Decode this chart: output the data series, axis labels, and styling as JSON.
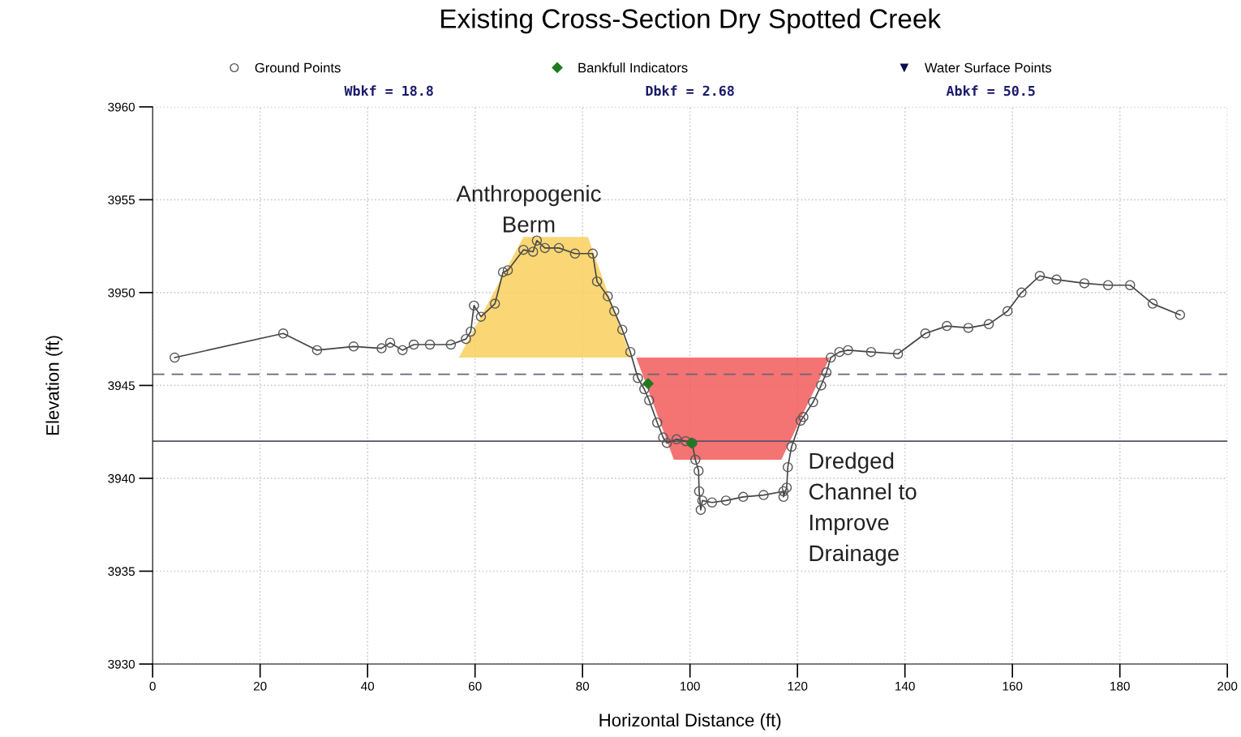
{
  "chart_data": {
    "type": "line",
    "title": "Existing Cross-Section Dry Spotted Creek",
    "xlabel": "Horizontal Distance (ft)",
    "ylabel": "Elevation (ft)",
    "xlim": [
      0,
      200
    ],
    "xticks": [
      0,
      20,
      40,
      60,
      80,
      100,
      120,
      140,
      160,
      180,
      200
    ],
    "ylim": [
      3930,
      3960
    ],
    "yticks": [
      3930,
      3935,
      3940,
      3945,
      3950,
      3955,
      3960
    ],
    "grid": true,
    "legend": "top",
    "series": [
      {
        "type": "area",
        "color": "#f9cf5c",
        "x": [
          57,
          69,
          81,
          89,
          57
        ],
        "values": [
          3946.5,
          3953,
          3953,
          3946.5,
          3946.5
        ]
      },
      {
        "type": "area",
        "color": "#f25a5a",
        "x": [
          90,
          126,
          117,
          97,
          90
        ],
        "values": [
          3946.5,
          3946.5,
          3941,
          3941,
          3946.5
        ]
      },
      {
        "name": "Ground Points",
        "color": "#444444",
        "marker": "circle",
        "line_style": "solid",
        "x": [
          4.1,
          24.3,
          30.6,
          37.4,
          42.6,
          44.2,
          46.5,
          48.6,
          51.6,
          55.5,
          58.3,
          59.2,
          59.8,
          61.1,
          63.7,
          65.2,
          66.1,
          69.0,
          70.8,
          71.5,
          73.0,
          75.6,
          78.6,
          81.9,
          82.7,
          84.7,
          85.9,
          87.4,
          88.9,
          90.3,
          91.5,
          92.4,
          93.9,
          95.0,
          95.7,
          97.5,
          99.2,
          100.4,
          101.0,
          101.6,
          101.7,
          102.0,
          102.3,
          104.1,
          106.7,
          109.9,
          113.7,
          117.4,
          117.4,
          118.0,
          118.2,
          118.9,
          120.6,
          121.1,
          122.9,
          124.4,
          125.4,
          126.2,
          127.8,
          129.4,
          133.7,
          138.7,
          143.8,
          147.8,
          151.8,
          155.6,
          159.1,
          161.7,
          165.1,
          168.2,
          173.4,
          177.8,
          181.9,
          186.1,
          191.2
        ],
        "values": [
          3946.5,
          3947.8,
          3946.9,
          3947.1,
          3947.0,
          3947.3,
          3946.9,
          3947.2,
          3947.2,
          3947.2,
          3947.5,
          3947.9,
          3949.3,
          3948.7,
          3949.4,
          3951.1,
          3951.2,
          3952.3,
          3952.2,
          3952.8,
          3952.4,
          3952.4,
          3952.1,
          3952.1,
          3950.6,
          3949.8,
          3949.0,
          3948.0,
          3946.8,
          3945.4,
          3944.8,
          3944.2,
          3943.0,
          3942.2,
          3941.9,
          3942.1,
          3942.0,
          3941.9,
          3941.0,
          3940.4,
          3939.3,
          3938.3,
          3938.8,
          3938.7,
          3938.8,
          3939.0,
          3939.1,
          3939.3,
          3939.0,
          3939.5,
          3940.6,
          3941.7,
          3943.1,
          3943.3,
          3944.1,
          3945.0,
          3945.7,
          3946.5,
          3946.8,
          3946.9,
          3946.8,
          3946.7,
          3947.8,
          3948.2,
          3948.1,
          3948.3,
          3949.0,
          3950.0,
          3950.9,
          3950.7,
          3950.5,
          3950.4,
          3950.4,
          3949.4,
          3948.8
        ]
      },
      {
        "type": "scatter",
        "name": "Bankfull Indicators",
        "color": "#1e7a1e",
        "marker": "diamond",
        "x": [
          92.2,
          100.3
        ],
        "values": [
          3945.1,
          3941.9
        ]
      },
      {
        "type": "scatter",
        "name": "Water Surface Points",
        "color": "#0a0a50",
        "marker": "triangle"
      }
    ],
    "ref_lines": [
      {
        "axis": "y",
        "value": 3942,
        "color": "#555566",
        "line_style": "solid"
      },
      {
        "axis": "y",
        "value": 3945.6,
        "color": "#666677",
        "line_style": "dashed"
      }
    ],
    "annotations": [
      "Wbkf = 18.8",
      "Dbkf = 2.68",
      "Abkf = 50.5",
      {
        "text": "Anthropogenic\nBerm",
        "x": 70,
        "y": 3953
      },
      "Dredged\nChannel to\nImprove\nDrainage"
    ]
  }
}
